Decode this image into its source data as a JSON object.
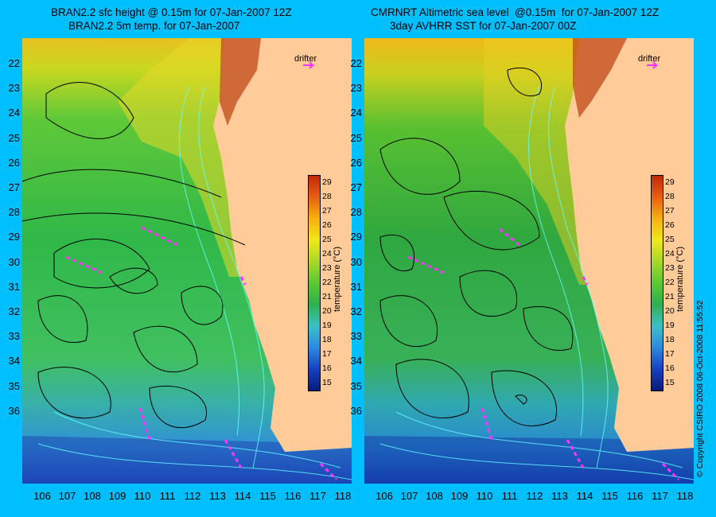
{
  "panels": [
    {
      "title_line1": "BRAN2.2 sfc height @ 0.15m for 07-Jan-2007 12Z",
      "title_line2": "BRAN2.2 5m temp. for 07-Jan-2007",
      "drifter_label": "drifter"
    },
    {
      "title_line1": "CMRNRT Altimetric sea level  @0.15m  for 07-Jan-2007 12Z",
      "title_line2": "3day AVHRR SST for 07-Jan-2007 00Z",
      "drifter_label": "drifter"
    }
  ],
  "lat_labels": [
    "22",
    "23",
    "24",
    "25",
    "26",
    "27",
    "28",
    "29",
    "30",
    "31",
    "32",
    "33",
    "34",
    "35",
    "36"
  ],
  "lon_labels": [
    "106",
    "107",
    "108",
    "109",
    "110",
    "111",
    "112",
    "113",
    "114",
    "115",
    "116",
    "117",
    "118"
  ],
  "colorbar": {
    "title": "temperature (°C)",
    "ticks": [
      "29",
      "28",
      "27",
      "26",
      "25",
      "24",
      "23",
      "22",
      "21",
      "20",
      "19",
      "18",
      "17",
      "16",
      "15"
    ],
    "range": [
      14.5,
      29.5
    ],
    "colors": [
      "#0a1a7a",
      "#1840c0",
      "#2c8ae0",
      "#3cc0c8",
      "#2eb050",
      "#5cc830",
      "#a8d828",
      "#f0e818",
      "#f8b010",
      "#e86010",
      "#c02808"
    ]
  },
  "copyright": "© Copyright CSIRO 2008     06-Oct-2008 11:55:52",
  "colors": {
    "background": "#00bfff",
    "land": "#ffcc99",
    "drifter": "#ff33ff",
    "contour_ssh": "#000000",
    "contour_bathy": "#66ffff"
  }
}
